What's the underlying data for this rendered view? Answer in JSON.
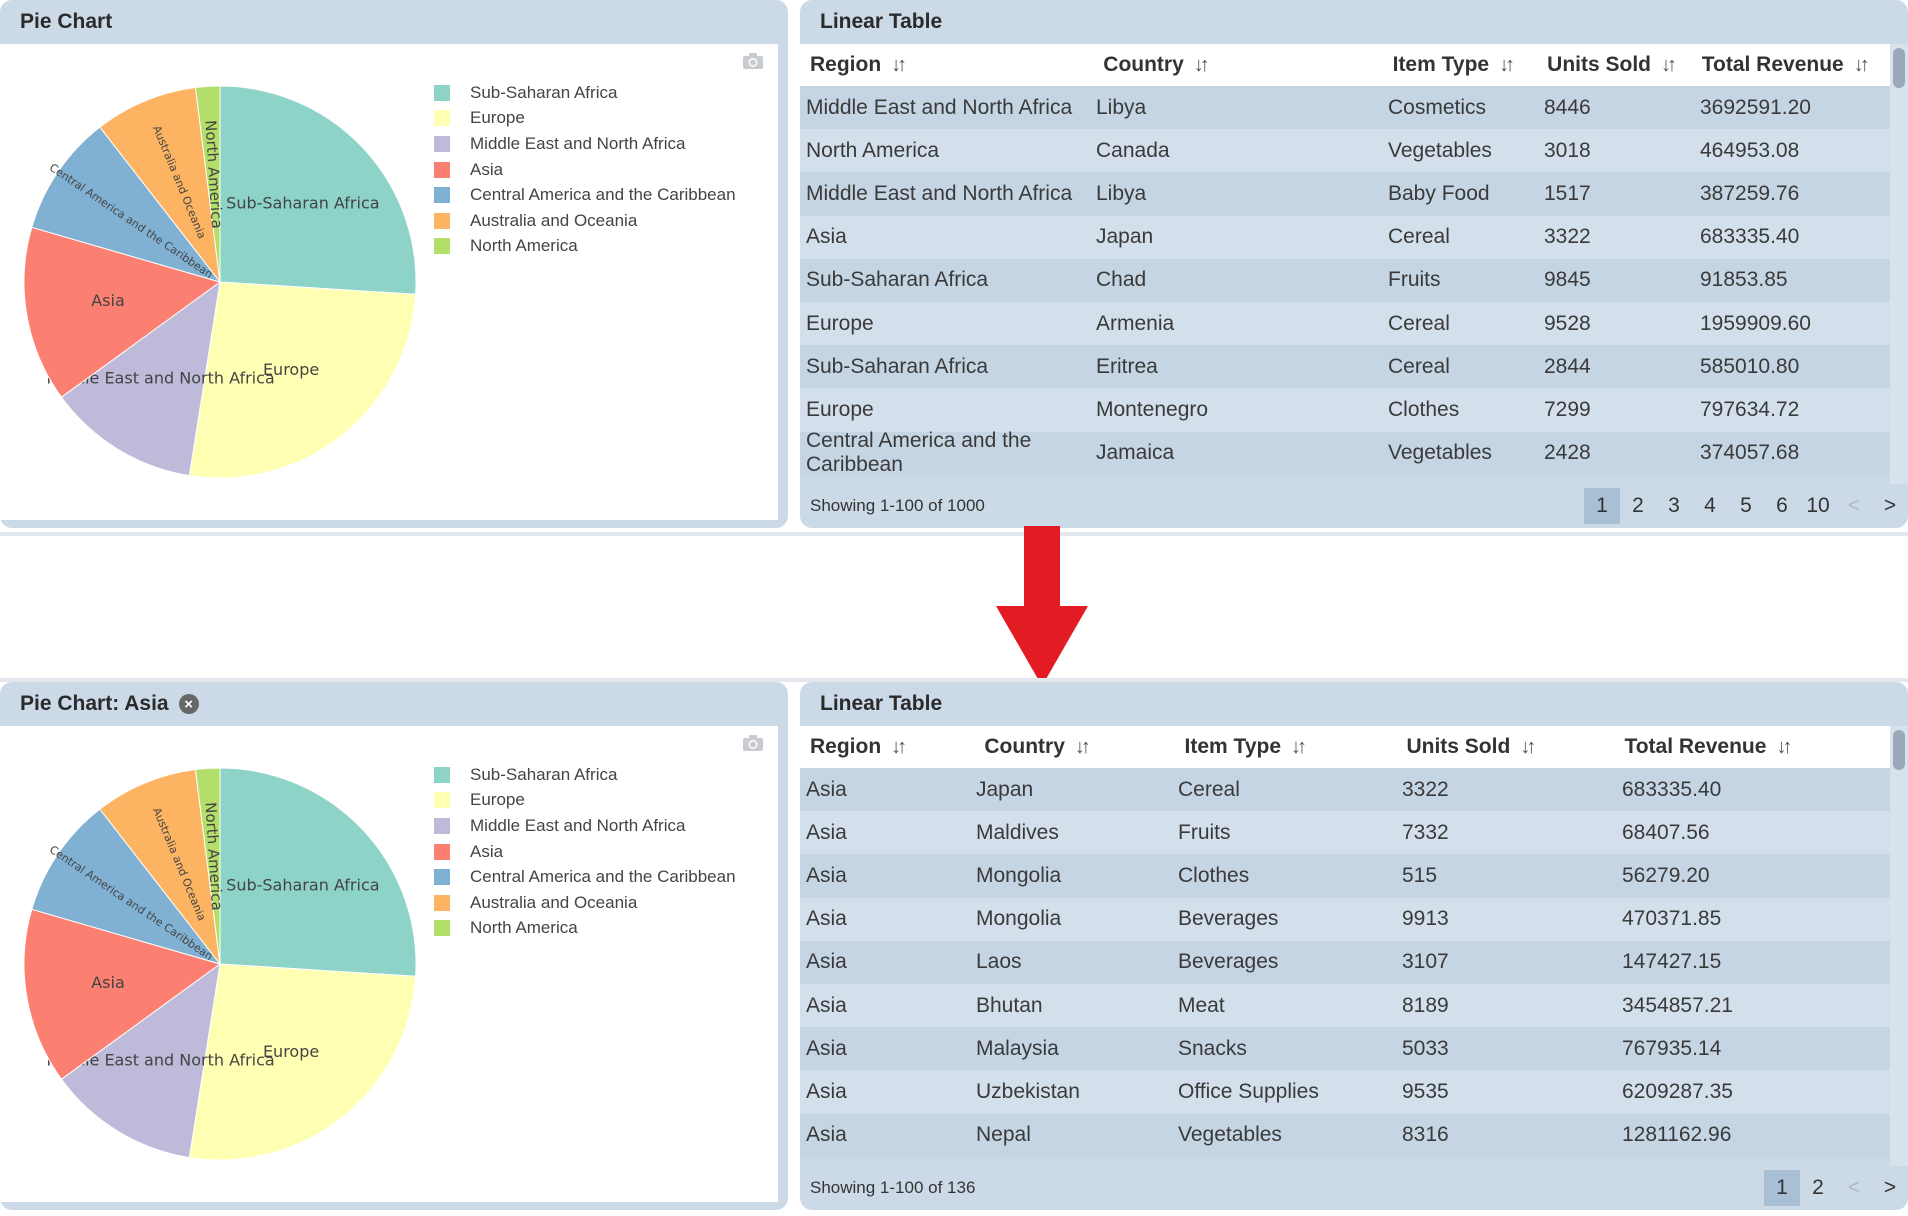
{
  "colors": {
    "panel_bg": "#ccdae8",
    "arrow": "#e31b23",
    "slices": [
      "#8dd3c7",
      "#ffffb3",
      "#bebada",
      "#fb8072",
      "#80b1d3",
      "#fdb462",
      "#b3de69"
    ]
  },
  "top": {
    "pie_title": "Pie Chart",
    "table_title": "Linear Table",
    "columns": [
      "Region",
      "Country",
      "Item Type",
      "Units Sold",
      "Total Revenue"
    ],
    "rows": [
      [
        "Middle East and North Africa",
        "Libya",
        "Cosmetics",
        "8446",
        "3692591.20"
      ],
      [
        "North America",
        "Canada",
        "Vegetables",
        "3018",
        "464953.08"
      ],
      [
        "Middle East and North Africa",
        "Libya",
        "Baby Food",
        "1517",
        "387259.76"
      ],
      [
        "Asia",
        "Japan",
        "Cereal",
        "3322",
        "683335.40"
      ],
      [
        "Sub-Saharan Africa",
        "Chad",
        "Fruits",
        "9845",
        "91853.85"
      ],
      [
        "Europe",
        "Armenia",
        "Cereal",
        "9528",
        "1959909.60"
      ],
      [
        "Sub-Saharan Africa",
        "Eritrea",
        "Cereal",
        "2844",
        "585010.80"
      ],
      [
        "Europe",
        "Montenegro",
        "Clothes",
        "7299",
        "797634.72"
      ],
      [
        "Central America and the Caribbean",
        "Jamaica",
        "Vegetables",
        "2428",
        "374057.68"
      ]
    ],
    "showing": "Showing 1-100 of 1000",
    "pages": [
      "1",
      "2",
      "3",
      "4",
      "5",
      "6",
      "10",
      "<",
      ">"
    ]
  },
  "bottom": {
    "pie_title": "Pie Chart: Asia",
    "close_glyph": "×",
    "table_title": "Linear Table",
    "columns": [
      "Region",
      "Country",
      "Item Type",
      "Units Sold",
      "Total Revenue"
    ],
    "rows": [
      [
        "Asia",
        "Japan",
        "Cereal",
        "3322",
        "683335.40"
      ],
      [
        "Asia",
        "Maldives",
        "Fruits",
        "7332",
        "68407.56"
      ],
      [
        "Asia",
        "Mongolia",
        "Clothes",
        "515",
        "56279.20"
      ],
      [
        "Asia",
        "Mongolia",
        "Beverages",
        "9913",
        "470371.85"
      ],
      [
        "Asia",
        "Laos",
        "Beverages",
        "3107",
        "147427.15"
      ],
      [
        "Asia",
        "Bhutan",
        "Meat",
        "8189",
        "3454857.21"
      ],
      [
        "Asia",
        "Malaysia",
        "Snacks",
        "5033",
        "767935.14"
      ],
      [
        "Asia",
        "Uzbekistan",
        "Office Supplies",
        "9535",
        "6209287.35"
      ],
      [
        "Asia",
        "Nepal",
        "Vegetables",
        "8316",
        "1281162.96"
      ]
    ],
    "showing": "Showing 1-100 of 136",
    "pages": [
      "1",
      "2",
      "<",
      ">"
    ]
  },
  "chart_data": [
    {
      "type": "pie",
      "title": "Pie Chart",
      "categories": [
        "Sub-Saharan Africa",
        "Europe",
        "Middle East and North Africa",
        "Asia",
        "Central America and the Caribbean",
        "Australia and Oceania",
        "North America"
      ],
      "values": [
        26.0,
        26.5,
        12.5,
        14.5,
        10.0,
        8.5,
        2.0
      ],
      "slice_labels": [
        "Sub-Saharan Africa",
        "Europe",
        "Middle East and North Africa",
        "Asia",
        "Central America and the Caribbean",
        "Australia and Oceania",
        "North America"
      ],
      "legend": "right"
    },
    {
      "type": "pie",
      "title": "Pie Chart: Asia",
      "categories": [
        "Sub-Saharan Africa",
        "Europe",
        "Middle East and North Africa",
        "Asia",
        "Central America and the Caribbean",
        "Australia and Oceania",
        "North America"
      ],
      "values": [
        26.0,
        26.5,
        12.5,
        14.5,
        10.0,
        8.5,
        2.0
      ],
      "slice_labels": [
        "Sub-Saharan Africa",
        "Europe",
        "Middle East and North Africa",
        "Asia",
        "Central America and the Caribbean",
        "Australia and Oceania",
        "North America"
      ],
      "legend": "right"
    }
  ]
}
